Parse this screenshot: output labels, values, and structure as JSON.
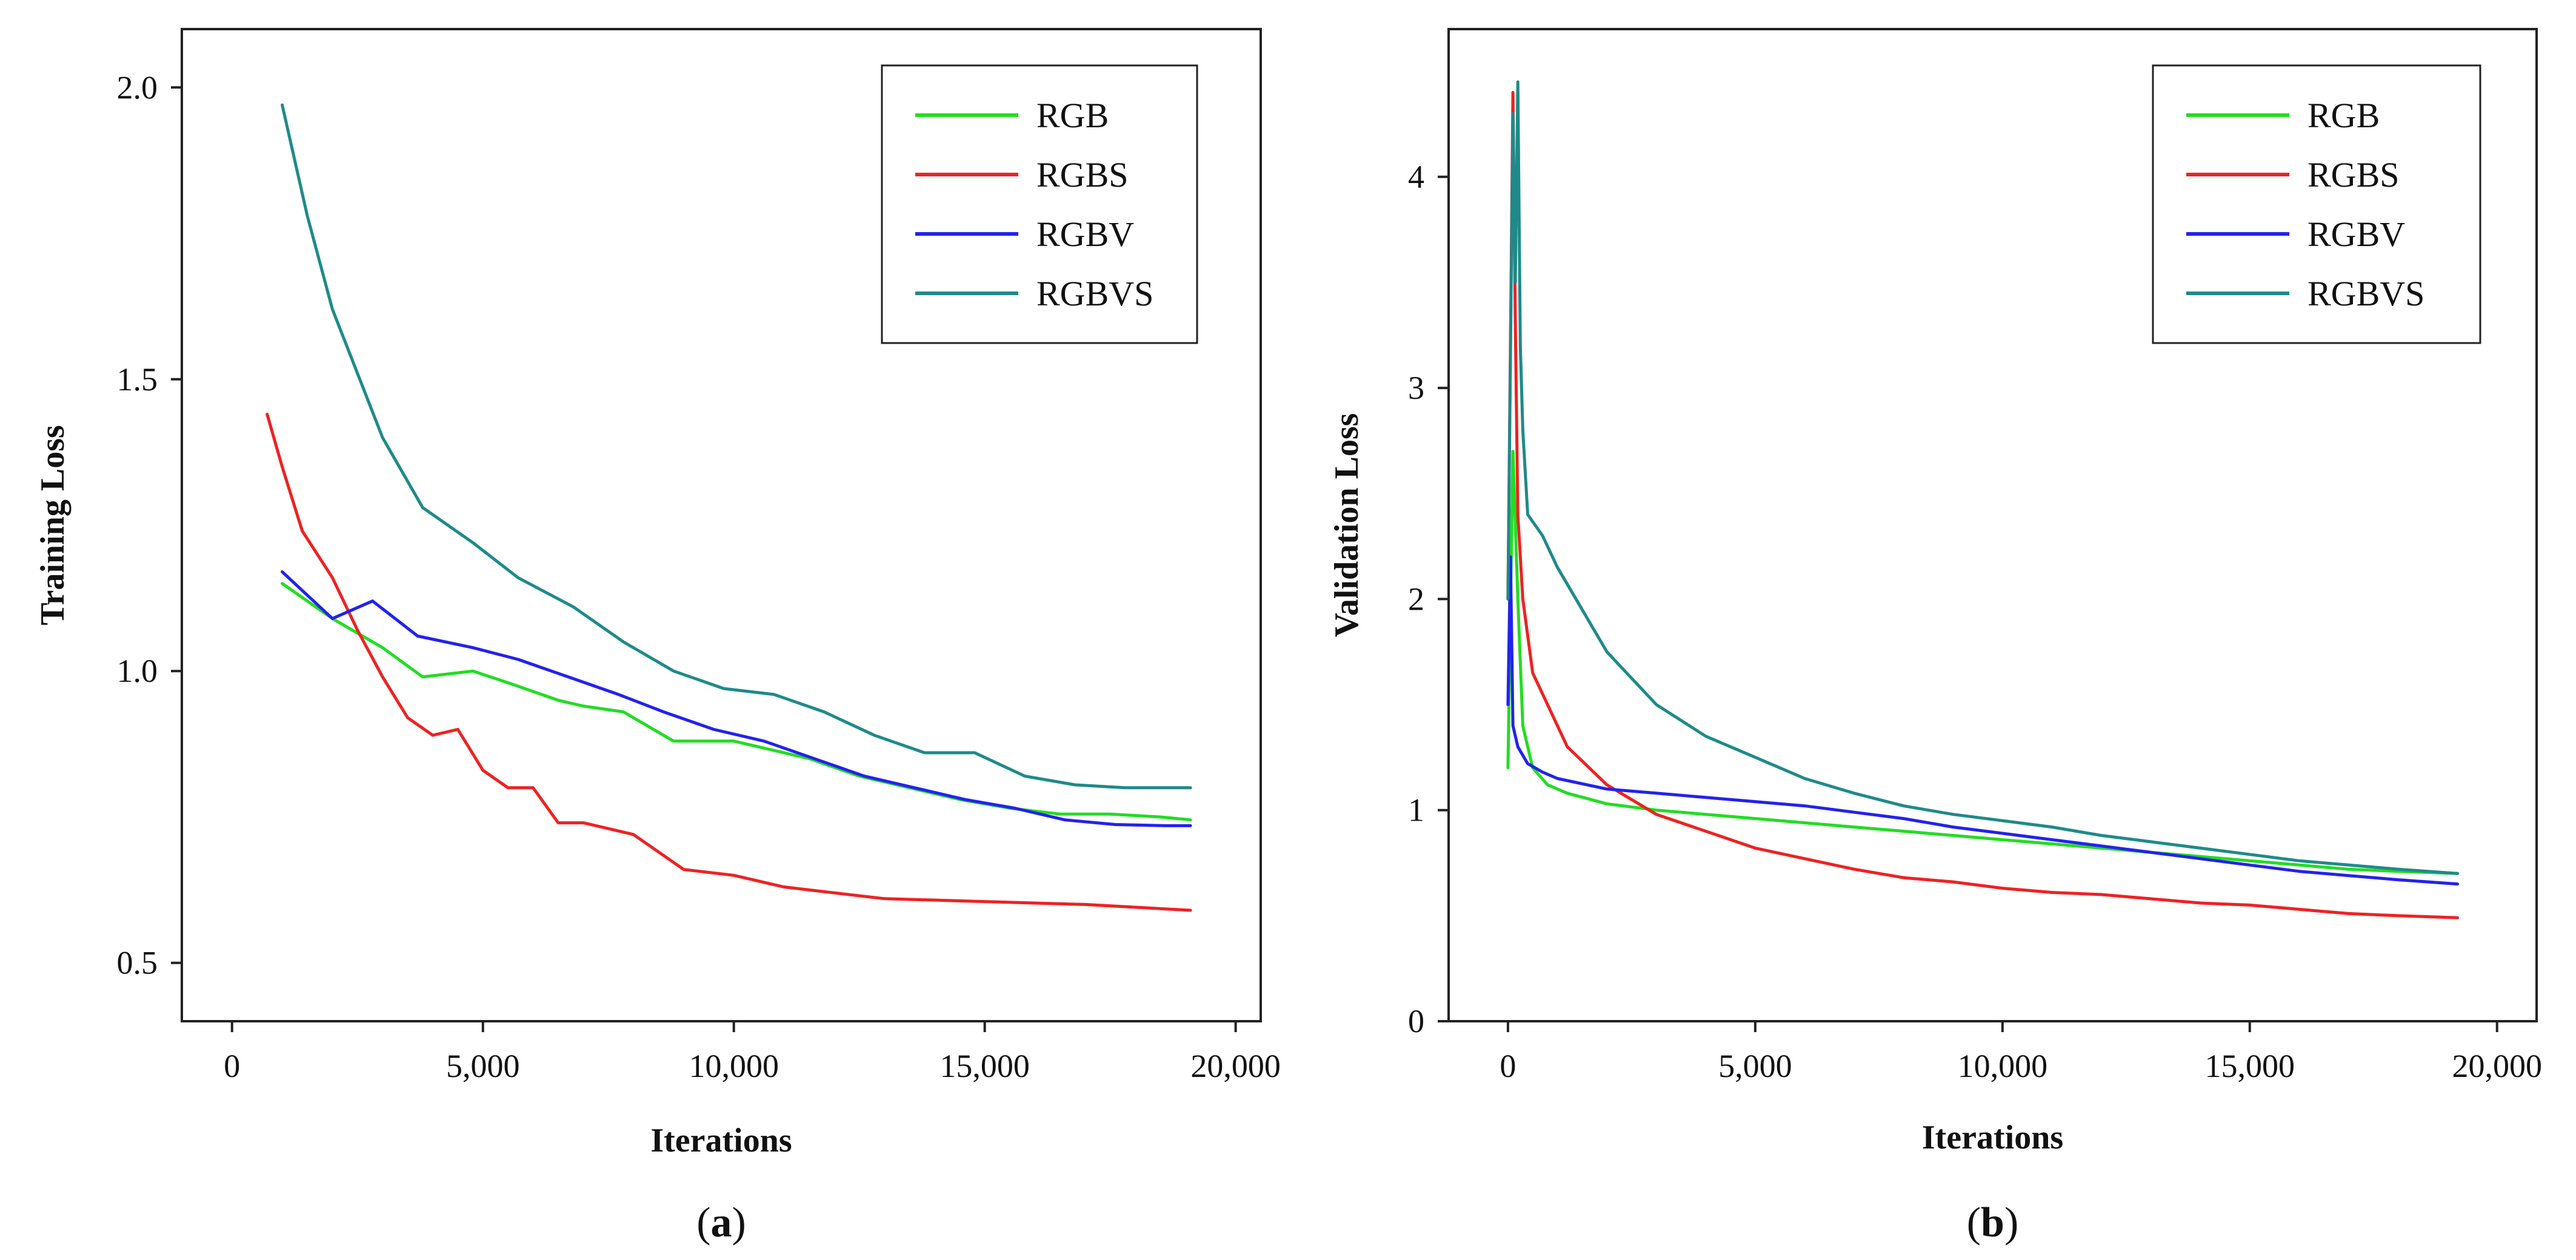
{
  "chart_data": [
    {
      "type": "line",
      "panel": "(a)",
      "caption_letter": "a",
      "xlabel": "Iterations",
      "ylabel": "Training  Loss",
      "xlim": [
        -1000,
        20500
      ],
      "ylim": [
        0.4,
        2.1
      ],
      "xticks": [
        0,
        5000,
        10000,
        15000,
        20000
      ],
      "xtick_labels": [
        "0",
        "5,000",
        "10,000",
        "15,000",
        "20,000"
      ],
      "yticks": [
        0.5,
        1.0,
        1.5,
        2.0
      ],
      "ytick_labels": [
        "0.5",
        "1.0",
        "1.5",
        "2.0"
      ],
      "grid": false,
      "legend": "top-right",
      "series": [
        {
          "name": "RGB",
          "color": "#22dd22",
          "x": [
            1000,
            2000,
            3000,
            3800,
            4800,
            5500,
            6500,
            7000,
            7800,
            8800,
            10000,
            11500,
            12500,
            13500,
            14500,
            15500,
            16500,
            17500,
            18500,
            19100
          ],
          "y": [
            1.15,
            1.09,
            1.04,
            0.99,
            1.0,
            0.98,
            0.95,
            0.94,
            0.93,
            0.88,
            0.88,
            0.85,
            0.82,
            0.8,
            0.78,
            0.765,
            0.755,
            0.755,
            0.75,
            0.745
          ]
        },
        {
          "name": "RGBS",
          "color": "#ee2222",
          "x": [
            700,
            1000,
            1400,
            2000,
            2500,
            3000,
            3500,
            4000,
            4500,
            5000,
            5500,
            6000,
            6500,
            7000,
            8000,
            9000,
            10000,
            11000,
            12000,
            13000,
            15000,
            17000,
            19100
          ],
          "y": [
            1.44,
            1.35,
            1.24,
            1.16,
            1.07,
            0.99,
            0.92,
            0.89,
            0.9,
            0.83,
            0.8,
            0.8,
            0.74,
            0.74,
            0.72,
            0.66,
            0.65,
            0.63,
            0.62,
            0.61,
            0.605,
            0.6,
            0.59
          ]
        },
        {
          "name": "RGBV",
          "color": "#2222ee",
          "x": [
            1000,
            2000,
            2800,
            3700,
            4800,
            5700,
            6700,
            7700,
            8600,
            9600,
            10600,
            11600,
            12600,
            13600,
            14600,
            15600,
            16600,
            17600,
            18600,
            19100
          ],
          "y": [
            1.17,
            1.09,
            1.12,
            1.06,
            1.04,
            1.02,
            0.99,
            0.96,
            0.93,
            0.9,
            0.88,
            0.85,
            0.82,
            0.8,
            0.78,
            0.765,
            0.745,
            0.737,
            0.735,
            0.735
          ]
        },
        {
          "name": "RGBVS",
          "color": "#1e8a8a",
          "x": [
            1000,
            1500,
            2000,
            3000,
            3800,
            4800,
            5700,
            6800,
            7800,
            8800,
            9800,
            10800,
            11800,
            12800,
            13800,
            14800,
            15800,
            16800,
            17800,
            19100
          ],
          "y": [
            1.97,
            1.78,
            1.62,
            1.4,
            1.28,
            1.22,
            1.16,
            1.11,
            1.05,
            1.0,
            0.97,
            0.96,
            0.93,
            0.89,
            0.86,
            0.86,
            0.82,
            0.805,
            0.8,
            0.8
          ]
        }
      ]
    },
    {
      "type": "line",
      "panel": "(b)",
      "caption_letter": "b",
      "xlabel": "Iterations",
      "ylabel": "Validation  Loss",
      "xlim": [
        -1200,
        20800
      ],
      "ylim": [
        0,
        4.7
      ],
      "xticks": [
        0,
        5000,
        10000,
        15000,
        20000
      ],
      "xtick_labels": [
        "0",
        "5,000",
        "10,000",
        "15,000",
        "20,000"
      ],
      "yticks": [
        0,
        1,
        2,
        3,
        4
      ],
      "ytick_labels": [
        "0",
        "1",
        "2",
        "3",
        "4"
      ],
      "grid": false,
      "legend": "top-right",
      "series": [
        {
          "name": "RGB",
          "color": "#22dd22",
          "x": [
            0,
            100,
            200,
            300,
            500,
            800,
            1200,
            2000,
            3000,
            4000,
            5000,
            6000,
            7000,
            8000,
            9000,
            10000,
            11000,
            12000,
            13000,
            14000,
            15000,
            16000,
            17000,
            18000,
            19200
          ],
          "y": [
            1.2,
            2.7,
            2.0,
            1.4,
            1.2,
            1.12,
            1.08,
            1.03,
            1.0,
            0.98,
            0.96,
            0.94,
            0.92,
            0.9,
            0.88,
            0.86,
            0.84,
            0.82,
            0.8,
            0.78,
            0.76,
            0.74,
            0.72,
            0.71,
            0.7
          ]
        },
        {
          "name": "RGBS",
          "color": "#ee2222",
          "x": [
            0,
            100,
            150,
            200,
            300,
            500,
            800,
            1200,
            2000,
            3000,
            4000,
            5000,
            6000,
            7000,
            8000,
            9000,
            10000,
            11000,
            12000,
            13000,
            14000,
            15000,
            16000,
            17000,
            18000,
            19200
          ],
          "y": [
            2.0,
            4.4,
            3.3,
            2.4,
            2.0,
            1.65,
            1.5,
            1.3,
            1.12,
            0.98,
            0.9,
            0.82,
            0.77,
            0.72,
            0.68,
            0.66,
            0.63,
            0.61,
            0.6,
            0.58,
            0.56,
            0.55,
            0.53,
            0.51,
            0.5,
            0.49
          ]
        },
        {
          "name": "RGBV",
          "color": "#2222ee",
          "x": [
            0,
            50,
            100,
            200,
            400,
            700,
            1000,
            2000,
            3000,
            4000,
            5000,
            6000,
            7000,
            8000,
            9000,
            10000,
            11000,
            12000,
            13000,
            14000,
            15000,
            16000,
            17000,
            18000,
            19200
          ],
          "y": [
            1.5,
            2.2,
            1.4,
            1.3,
            1.22,
            1.18,
            1.15,
            1.1,
            1.08,
            1.06,
            1.04,
            1.02,
            0.99,
            0.96,
            0.92,
            0.89,
            0.86,
            0.83,
            0.8,
            0.77,
            0.74,
            0.71,
            0.69,
            0.67,
            0.65
          ]
        },
        {
          "name": "RGBVS",
          "color": "#1e8a8a",
          "x": [
            0,
            100,
            150,
            200,
            250,
            300,
            400,
            700,
            1000,
            1500,
            2000,
            3000,
            4000,
            5000,
            6000,
            7000,
            8000,
            9000,
            10000,
            11000,
            12000,
            13000,
            14000,
            15000,
            16000,
            17000,
            18000,
            19200
          ],
          "y": [
            2.0,
            4.3,
            3.5,
            4.45,
            3.2,
            2.8,
            2.4,
            2.3,
            2.15,
            1.95,
            1.75,
            1.5,
            1.35,
            1.25,
            1.15,
            1.08,
            1.02,
            0.98,
            0.95,
            0.92,
            0.88,
            0.85,
            0.82,
            0.79,
            0.76,
            0.74,
            0.72,
            0.7
          ]
        }
      ]
    }
  ]
}
